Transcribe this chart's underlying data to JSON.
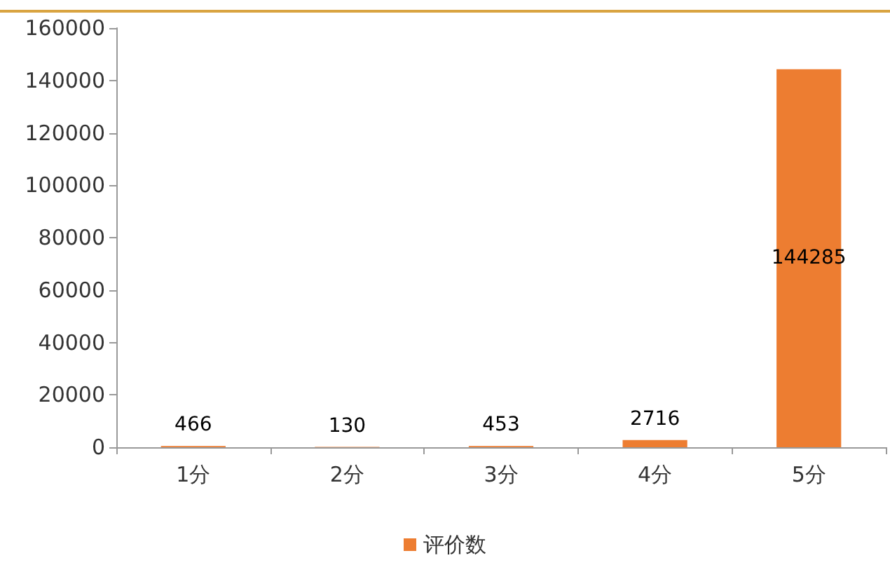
{
  "chart_data": {
    "type": "bar",
    "categories": [
      "1分",
      "2分",
      "3分",
      "4分",
      "5分"
    ],
    "series": [
      {
        "name": "评价数",
        "color": "#ed7d31",
        "values": [
          466,
          130,
          453,
          2716,
          144285
        ]
      }
    ],
    "ylim": [
      0,
      160000
    ],
    "yticks": [
      0,
      20000,
      40000,
      60000,
      80000,
      100000,
      120000,
      140000,
      160000
    ],
    "grid": false,
    "legend": "bottom",
    "data_labels": true
  }
}
